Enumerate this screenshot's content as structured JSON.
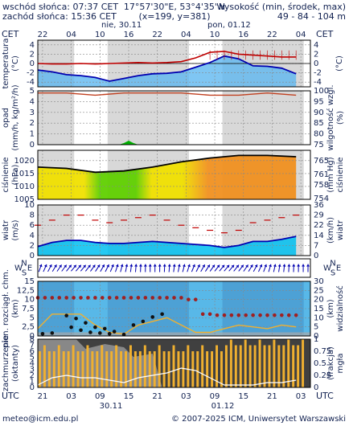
{
  "header": {
    "sunrise": "wschód słońca: 07:37 CET",
    "sunset": "zachód słońca: 15:36 CET",
    "coords": "17°57'30\"E, 53°4'35\"N",
    "grid": "(x=199, y=381)",
    "altitude_title": "wysokość (min, środek, max)",
    "altitude_values": "49 - 84 - 104 m"
  },
  "timeline": {
    "tz": "CET",
    "top_hours": [
      "22",
      "04",
      "10",
      "16",
      "22",
      "04",
      "10",
      "16",
      "22",
      "04"
    ],
    "day1": "nie, 30.11",
    "day2": "pon, 01.12",
    "tz_bottom": "UTC",
    "bottom_hours": [
      "21",
      "03",
      "09",
      "15",
      "21",
      "03",
      "09",
      "15",
      "21",
      "03"
    ],
    "date1": "30.11",
    "date2": "01.12"
  },
  "footer": {
    "email": "meteo@icm.edu.pl",
    "copyright": "© 2007-2025 ICM, Uniwersytet Warszawski"
  },
  "colors": {
    "temp_max": "#c00000",
    "temp_min": "#0000b0",
    "dew_fill": "#5fb8f0",
    "pressure_yellow": "#f0e000",
    "pressure_green": "#60d000",
    "pressure_orange": "#f09020",
    "humidity": "#c04020",
    "precip": "#00b000",
    "wind": "#0000b0",
    "gust": "#c00000",
    "cloud_total": "#f0b030",
    "cloud_high": "#555555",
    "fog": "#ffffff"
  },
  "chart_data": [
    {
      "type": "line",
      "panel": "temperature",
      "ylabel": "temperatura (°C)",
      "yticks": [
        -4,
        -2,
        0,
        2,
        4
      ],
      "ylim": [
        -5,
        5
      ],
      "x_hours": [
        0,
        3,
        6,
        9,
        12,
        15,
        18,
        21,
        24,
        27,
        30,
        33,
        36,
        39,
        42,
        45,
        48,
        51,
        54
      ],
      "series": [
        {
          "values": [
            0.0,
            -0.1,
            -0.1,
            0.0,
            -0.1,
            0.0,
            0.1,
            0.2,
            0.1,
            0.2,
            0.4,
            1.2,
            2.4,
            2.6,
            2.0,
            1.8,
            1.6,
            1.4,
            1.4
          ]
        },
        {
          "values": [
            -1.4,
            -1.8,
            -2.4,
            -2.6,
            -3.0,
            -3.8,
            -3.2,
            -2.6,
            -2.2,
            -2.1,
            -1.8,
            -0.8,
            0.2,
            1.6,
            1.0,
            -0.5,
            -0.6,
            -1.0,
            -2.2
          ]
        }
      ]
    },
    {
      "type": "line",
      "panel": "precipitation_humidity",
      "ylabel": "opad (mm/h, kg/m²/h)",
      "y2label": "wilgotność wzgl. (%)",
      "yticks": [
        0,
        1,
        2,
        3,
        4,
        5
      ],
      "y2ticks": [
        75,
        80,
        85,
        90,
        95,
        100
      ],
      "ylim": [
        0,
        5
      ],
      "y2lim": [
        75,
        100
      ],
      "x_hours": [
        0,
        6,
        12,
        18,
        24,
        30,
        36,
        42,
        48,
        54
      ],
      "series": [
        {
          "values": [
            99,
            99,
            98,
            99,
            99,
            99,
            98,
            98,
            99,
            98
          ]
        },
        {
          "values": [
            0,
            0,
            0,
            0.1,
            0,
            0,
            0,
            0,
            0,
            0
          ]
        }
      ]
    },
    {
      "type": "area",
      "panel": "pressure",
      "ylabel": "ciśnienie (hPa)",
      "y2label": "(mm Hg)",
      "yticks": [
        1005,
        1010,
        1015,
        1020
      ],
      "y2ticks": [
        754,
        758,
        761,
        765
      ],
      "ylim": [
        1005,
        1024
      ],
      "x_hours": [
        0,
        6,
        12,
        18,
        24,
        30,
        36,
        42,
        48,
        54
      ],
      "series": [
        {
          "values": [
            1017.5,
            1017.0,
            1015.5,
            1016.0,
            1017.5,
            1019.5,
            1021.0,
            1022.0,
            1022.0,
            1021.5
          ]
        }
      ]
    },
    {
      "type": "line",
      "panel": "wind",
      "ylabel": "wiatr (m/s)",
      "y2label": "(km/h)",
      "yticks": [
        0,
        2,
        4,
        6,
        8,
        10
      ],
      "y2ticks": [
        0,
        7,
        14,
        22,
        29,
        36
      ],
      "ylim": [
        0,
        10
      ],
      "x_hours": [
        0,
        3,
        6,
        9,
        12,
        15,
        18,
        21,
        24,
        27,
        30,
        33,
        36,
        39,
        42,
        45,
        48,
        51,
        54
      ],
      "series": [
        {
          "values": [
            1.8,
            2.6,
            3.0,
            3.0,
            2.6,
            2.4,
            2.4,
            2.6,
            2.8,
            2.6,
            2.4,
            2.2,
            2.0,
            1.6,
            2.0,
            2.8,
            2.8,
            3.2,
            3.8
          ]
        },
        {
          "values": [
            6.0,
            7.0,
            8.0,
            8.0,
            7.0,
            6.5,
            7.0,
            7.5,
            8.0,
            7.0,
            6.0,
            5.5,
            5.0,
            4.5,
            5.0,
            6.5,
            7.0,
            7.5,
            8.0
          ]
        }
      ]
    },
    {
      "type": "scatter",
      "panel": "visibility",
      "ylabel": "pion. rozciągł. chm. (km)",
      "y2label": "widzialność (km)",
      "yticks": [
        0,
        2.5,
        5,
        7.5,
        10,
        12.5,
        15
      ],
      "y2ticks": [
        0,
        5,
        10,
        15,
        20,
        25,
        30
      ],
      "ylim": [
        0,
        15
      ],
      "y2lim": [
        0,
        30
      ],
      "x_hours": [
        0,
        3,
        6,
        9,
        12,
        15,
        18,
        21,
        24,
        27,
        30,
        33,
        36,
        39,
        42,
        45,
        48,
        51,
        54
      ],
      "series": [
        {
          "values": [
            2.0,
            6.0,
            6.0,
            6.0,
            3.0,
            1.0,
            0.5,
            3.0,
            4.0,
            5.0,
            3.0,
            1.0,
            1.0,
            2.0,
            3.0,
            2.5,
            2.0,
            3.0,
            2.5
          ]
        },
        {
          "values": [
            10.5,
            10.5,
            10.5,
            10.5,
            10.5,
            10.5,
            10.5,
            10.5,
            10.5,
            10.5,
            10.5,
            10.0,
            6.0,
            5.7,
            5.7,
            5.7,
            5.7,
            5.7,
            5.7
          ]
        }
      ]
    },
    {
      "type": "bar",
      "panel": "cloudiness",
      "ylabel": "zachmurzenie (oktanty)",
      "y2label": "mgła (frakcja)",
      "yticks": [
        0,
        1,
        2,
        3,
        4,
        5,
        6,
        7,
        8
      ],
      "y2ticks": [
        0,
        0.25,
        0.5,
        0.75,
        1
      ],
      "ylim": [
        0,
        8
      ],
      "y2lim": [
        0,
        1
      ],
      "x_hours": [
        0,
        3,
        6,
        9,
        12,
        15,
        18,
        21,
        24,
        27,
        30,
        33,
        36,
        39,
        42,
        45,
        48,
        51,
        54
      ],
      "series": [
        {
          "values": [
            6,
            6,
            6,
            6,
            6,
            6,
            6,
            6,
            6,
            6,
            6,
            6,
            6,
            7,
            7,
            7,
            7,
            7,
            7
          ]
        },
        {
          "values": [
            7,
            7,
            7,
            7,
            6,
            6,
            6,
            6,
            6,
            6,
            7,
            7,
            7,
            7,
            7,
            7,
            7,
            7,
            7
          ]
        },
        {
          "values": [
            0.05,
            0.2,
            0.25,
            0.2,
            0.2,
            0.15,
            0.1,
            0.2,
            0.25,
            0.3,
            0.4,
            0.35,
            0.2,
            0.05,
            0.05,
            0.05,
            0.1,
            0.1,
            0.15
          ]
        }
      ]
    }
  ]
}
